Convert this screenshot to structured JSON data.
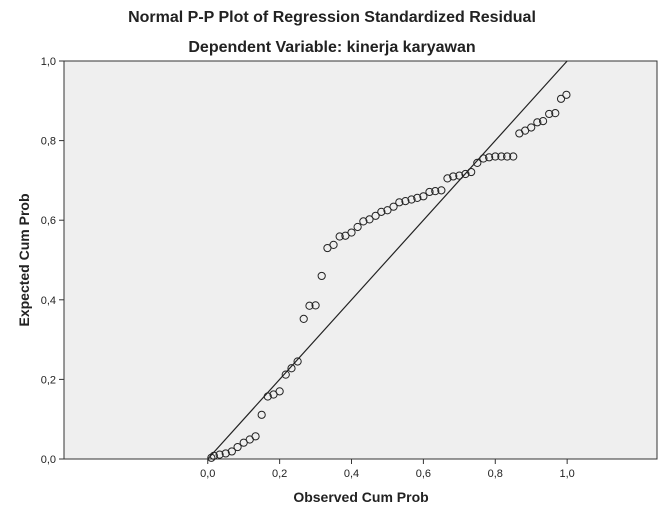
{
  "chart_data": {
    "type": "scatter",
    "title": "Normal P-P Plot of Regression Standardized Residual",
    "subtitle": "Dependent Variable: kinerja karyawan",
    "xlabel": "Observed Cum Prob",
    "ylabel": "Expected Cum Prob",
    "xlim": [
      -0.4,
      1.25
    ],
    "ylim": [
      0.0,
      1.0
    ],
    "xticks": [
      "0,0",
      "0,2",
      "0,4",
      "0,6",
      "0,8",
      "1,0"
    ],
    "yticks": [
      "0,0",
      "0,2",
      "0,4",
      "0,6",
      "0,8",
      "1,0"
    ],
    "grid": false,
    "reference_line": {
      "from": [
        0,
        0
      ],
      "to": [
        1,
        1
      ]
    },
    "points": [
      [
        0.01,
        0.003
      ],
      [
        0.017,
        0.008
      ],
      [
        0.033,
        0.011
      ],
      [
        0.05,
        0.014
      ],
      [
        0.067,
        0.019
      ],
      [
        0.083,
        0.03
      ],
      [
        0.1,
        0.041
      ],
      [
        0.117,
        0.049
      ],
      [
        0.133,
        0.057
      ],
      [
        0.15,
        0.111
      ],
      [
        0.167,
        0.157
      ],
      [
        0.183,
        0.162
      ],
      [
        0.2,
        0.17
      ],
      [
        0.217,
        0.212
      ],
      [
        0.233,
        0.228
      ],
      [
        0.25,
        0.245
      ],
      [
        0.267,
        0.352
      ],
      [
        0.283,
        0.385
      ],
      [
        0.3,
        0.386
      ],
      [
        0.317,
        0.46
      ],
      [
        0.333,
        0.53
      ],
      [
        0.35,
        0.538
      ],
      [
        0.367,
        0.559
      ],
      [
        0.383,
        0.561
      ],
      [
        0.4,
        0.569
      ],
      [
        0.417,
        0.583
      ],
      [
        0.433,
        0.597
      ],
      [
        0.45,
        0.602
      ],
      [
        0.467,
        0.611
      ],
      [
        0.483,
        0.621
      ],
      [
        0.5,
        0.625
      ],
      [
        0.517,
        0.634
      ],
      [
        0.533,
        0.645
      ],
      [
        0.55,
        0.648
      ],
      [
        0.567,
        0.652
      ],
      [
        0.583,
        0.656
      ],
      [
        0.6,
        0.66
      ],
      [
        0.617,
        0.671
      ],
      [
        0.633,
        0.673
      ],
      [
        0.65,
        0.675
      ],
      [
        0.667,
        0.705
      ],
      [
        0.683,
        0.71
      ],
      [
        0.7,
        0.712
      ],
      [
        0.717,
        0.716
      ],
      [
        0.733,
        0.721
      ],
      [
        0.75,
        0.744
      ],
      [
        0.767,
        0.755
      ],
      [
        0.783,
        0.758
      ],
      [
        0.8,
        0.76
      ],
      [
        0.817,
        0.76
      ],
      [
        0.833,
        0.76
      ],
      [
        0.85,
        0.76
      ],
      [
        0.867,
        0.818
      ],
      [
        0.883,
        0.825
      ],
      [
        0.9,
        0.833
      ],
      [
        0.917,
        0.846
      ],
      [
        0.933,
        0.849
      ],
      [
        0.95,
        0.867
      ],
      [
        0.967,
        0.869
      ],
      [
        0.983,
        0.905
      ],
      [
        0.998,
        0.915
      ]
    ]
  }
}
